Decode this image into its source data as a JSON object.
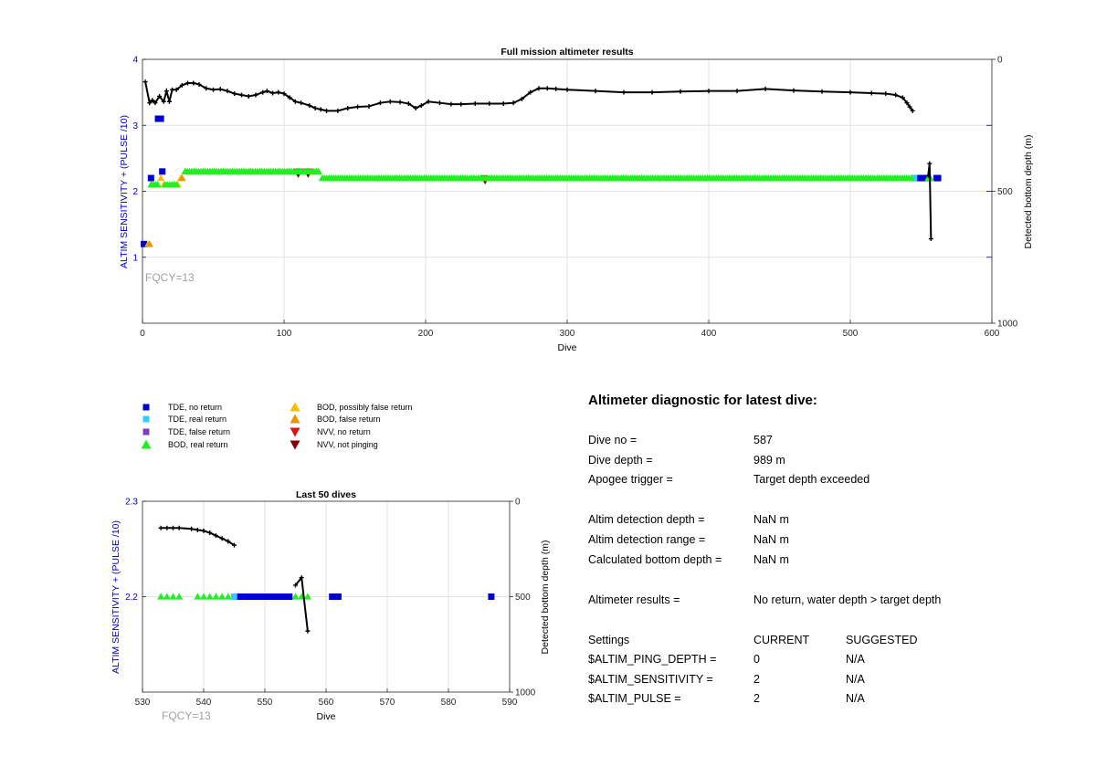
{
  "colors": {
    "tde_no_return": "#0000cc",
    "tde_real_return": "#33ccff",
    "tde_false_return": "#7d3fbf",
    "bod_real_return": "#22ee22",
    "bod_possibly_false": "#f2c000",
    "bod_false": "#e69400",
    "nvv_no_return": "#dd1111",
    "nvv_not_pinging": "#880000",
    "depth_line": "#000000",
    "left_axis": "#0000cc",
    "fqcy_text": "#a0a0a0"
  },
  "top": {
    "title": "Full mission altimeter results",
    "xlabel": "Dive",
    "ylabel_left": "ALTIM SENSITIVITY + (PULSE /10)",
    "ylabel_right": "Detected bottom depth (m)",
    "fqcy": "FQCY=13"
  },
  "bottom": {
    "title": "Last 50 dives",
    "xlabel": "Dive",
    "ylabel_left": "ALTIM SENSITIVITY + (PULSE /10)",
    "ylabel_right": "Detected bottom depth (m)",
    "fqcy": "FQCY=13"
  },
  "legend": [
    {
      "label": "TDE, no return",
      "marker": "square",
      "color_key": "tde_no_return"
    },
    {
      "label": "TDE, real return",
      "marker": "square",
      "color_key": "tde_real_return"
    },
    {
      "label": "TDE, false return",
      "marker": "square",
      "color_key": "tde_false_return"
    },
    {
      "label": "BOD, real return",
      "marker": "triangle-up",
      "color_key": "bod_real_return"
    },
    {
      "label": "BOD, possibly false return",
      "marker": "triangle-up",
      "color_key": "bod_possibly_false"
    },
    {
      "label": "BOD, false return",
      "marker": "triangle-up",
      "color_key": "bod_false"
    },
    {
      "label": "NVV, no return",
      "marker": "triangle-down",
      "color_key": "nvv_no_return"
    },
    {
      "label": "NVV, not pinging",
      "marker": "triangle-down",
      "color_key": "nvv_not_pinging"
    }
  ],
  "diagnostic": {
    "title": "Altimeter diagnostic for latest dive:",
    "dive_no_label": "Dive no =",
    "dive_no_value": "587",
    "dive_depth_label": "Dive depth =",
    "dive_depth_value": "989 m",
    "apogee_label": "Apogee trigger =",
    "apogee_value": "Target depth exceeded",
    "det_depth_label": "Altim detection depth =",
    "det_depth_value": "NaN m",
    "det_range_label": "Altim detection range =",
    "det_range_value": "NaN m",
    "calc_depth_label": "Calculated bottom depth =",
    "calc_depth_value": "NaN m",
    "results_label": "Altimeter results =",
    "results_value": "No return, water depth > target depth",
    "settings_header": "Settings",
    "current_header": "CURRENT",
    "suggested_header": "SUGGESTED",
    "settings": [
      {
        "name": "$ALTIM_PING_DEPTH =",
        "current": "0",
        "suggested": "N/A"
      },
      {
        "name": "$ALTIM_SENSITIVITY =",
        "current": "2",
        "suggested": "N/A"
      },
      {
        "name": "$ALTIM_PULSE =",
        "current": "2",
        "suggested": "N/A"
      }
    ]
  },
  "chart_data": [
    {
      "type": "scatter",
      "title": "Full mission altimeter results",
      "xlabel": "Dive",
      "ylabel_left": "ALTIM SENSITIVITY + (PULSE /10)",
      "ylabel_right": "Detected bottom depth (m)",
      "xlim": [
        0,
        600
      ],
      "ylim_left": [
        0,
        4
      ],
      "ylim_right": [
        0,
        1000
      ],
      "right_axis_reversed": true,
      "x_ticks": [
        0,
        100,
        200,
        300,
        400,
        500,
        600
      ],
      "y_left_ticks": [
        1,
        2,
        3,
        4
      ],
      "y_right_ticks": [
        0,
        500,
        1000
      ],
      "grid": true,
      "series": [
        {
          "name": "TDE, no return",
          "marker": "square",
          "color_key": "tde_no_return",
          "axis": "left",
          "x": [
            1,
            6,
            11,
            13,
            14,
            545,
            548,
            551,
            553,
            561,
            562
          ],
          "y": [
            1.2,
            2.2,
            3.1,
            3.1,
            2.3,
            2.2,
            2.2,
            2.2,
            2.2,
            2.2,
            2.2
          ]
        },
        {
          "name": "TDE, real return",
          "marker": "square",
          "color_key": "tde_real_return",
          "axis": "left",
          "x": [
            545
          ],
          "y": [
            2.2
          ]
        },
        {
          "name": "BOD, possibly false return",
          "marker": "triangle-up",
          "color_key": "bod_possibly_false",
          "axis": "left",
          "x": [
            4,
            7,
            13,
            15,
            25,
            27
          ],
          "y": [
            1.2,
            2.1,
            2.2,
            2.1,
            2.1,
            2.2
          ]
        },
        {
          "name": "BOD, false return",
          "marker": "triangle-up",
          "color_key": "bod_false",
          "axis": "left",
          "x": [
            5,
            28
          ],
          "y": [
            1.2,
            2.2
          ]
        },
        {
          "name": "NVV, no return",
          "marker": "triangle-down",
          "color_key": "nvv_no_return",
          "axis": "left",
          "x": [
            109,
            111,
            116,
            118,
            241
          ],
          "y": [
            2.3,
            2.3,
            2.3,
            2.3,
            2.2
          ]
        },
        {
          "name": "NVV, not pinging",
          "marker": "triangle-down",
          "color_key": "nvv_not_pinging",
          "axis": "left",
          "x": [
            110,
            117,
            242
          ],
          "y": [
            2.26,
            2.26,
            2.16
          ]
        },
        {
          "name": "BOD, real return",
          "marker": "triangle-up",
          "color_key": "bod_real_return",
          "axis": "left",
          "segments": [
            {
              "x_from": 6,
              "x_to": 12,
              "y": 2.1
            },
            {
              "x_from": 16,
              "x_to": 24,
              "y": 2.1
            },
            {
              "x_from": 30,
              "x_to": 125,
              "y": 2.3
            },
            {
              "x_from": 127,
              "x_to": 544,
              "y": 2.2
            },
            {
              "x_from": 555,
              "x_to": 557,
              "y": 2.2
            }
          ]
        },
        {
          "name": "Detected bottom depth",
          "marker": "plus-line",
          "color_key": "depth_line",
          "axis": "right",
          "x": [
            2,
            5,
            7,
            9,
            12,
            15,
            17,
            19,
            21,
            24,
            28,
            32,
            36,
            40,
            45,
            50,
            55,
            60,
            65,
            70,
            75,
            80,
            85,
            88,
            92,
            96,
            100,
            104,
            108,
            112,
            118,
            122,
            126,
            130,
            138,
            145,
            152,
            160,
            168,
            175,
            182,
            188,
            193,
            197,
            202,
            210,
            218,
            225,
            235,
            245,
            255,
            262,
            268,
            274,
            280,
            286,
            292,
            300,
            320,
            340,
            360,
            380,
            400,
            420,
            440,
            460,
            480,
            500,
            515,
            525,
            532,
            537,
            540,
            542,
            544
          ],
          "y": [
            85,
            165,
            155,
            165,
            140,
            160,
            120,
            160,
            115,
            115,
            98,
            90,
            90,
            95,
            110,
            115,
            113,
            120,
            130,
            135,
            140,
            135,
            125,
            120,
            128,
            125,
            130,
            145,
            160,
            165,
            175,
            185,
            190,
            195,
            195,
            185,
            180,
            178,
            165,
            160,
            162,
            168,
            185,
            175,
            160,
            165,
            170,
            170,
            168,
            168,
            168,
            165,
            150,
            125,
            110,
            110,
            112,
            115,
            120,
            125,
            125,
            122,
            120,
            120,
            112,
            118,
            122,
            125,
            128,
            130,
            135,
            145,
            165,
            180,
            195
          ]
        },
        {
          "name": "Detected bottom depth (late)",
          "marker": "plus-line",
          "color_key": "depth_line",
          "axis": "right",
          "x": [
            555,
            556,
            557
          ],
          "y": [
            440,
            395,
            680
          ]
        }
      ]
    },
    {
      "type": "scatter",
      "title": "Last 50 dives",
      "xlabel": "Dive",
      "ylabel_left": "ALTIM SENSITIVITY + (PULSE /10)",
      "ylabel_right": "Detected bottom depth (m)",
      "xlim": [
        530,
        590
      ],
      "ylim_left": [
        2.1,
        2.3
      ],
      "ylim_right": [
        0,
        1000
      ],
      "right_axis_reversed": true,
      "x_ticks": [
        530,
        540,
        550,
        560,
        570,
        580,
        590
      ],
      "y_left_ticks": [
        2.3,
        2.2
      ],
      "y_right_ticks": [
        0,
        500,
        1000
      ],
      "grid": true,
      "series": [
        {
          "name": "BOD, real return",
          "marker": "triangle-up",
          "color_key": "bod_real_return",
          "axis": "left",
          "x": [
            533,
            534,
            535,
            536,
            539,
            540,
            541,
            542,
            543,
            544,
            555,
            556,
            557
          ],
          "y": [
            2.2,
            2.2,
            2.2,
            2.2,
            2.2,
            2.2,
            2.2,
            2.2,
            2.2,
            2.2,
            2.2,
            2.2,
            2.2
          ]
        },
        {
          "name": "TDE, real return",
          "marker": "square",
          "color_key": "tde_real_return",
          "axis": "left",
          "x": [
            545
          ],
          "y": [
            2.2
          ]
        },
        {
          "name": "TDE, no return",
          "marker": "square",
          "color_key": "tde_no_return",
          "axis": "left",
          "x": [
            546,
            547,
            548,
            549,
            550,
            551,
            552,
            553,
            554,
            561,
            562,
            587
          ],
          "y": [
            2.2,
            2.2,
            2.2,
            2.2,
            2.2,
            2.2,
            2.2,
            2.2,
            2.2,
            2.2,
            2.2,
            2.2
          ]
        },
        {
          "name": "Detected bottom depth",
          "marker": "plus-line",
          "color_key": "depth_line",
          "axis": "right",
          "x": [
            533,
            534,
            535,
            536,
            538,
            539,
            540,
            541,
            542,
            543,
            544,
            545
          ],
          "y": [
            140,
            140,
            140,
            140,
            145,
            150,
            155,
            165,
            180,
            195,
            210,
            230
          ]
        },
        {
          "name": "Detected bottom depth (late)",
          "marker": "plus-line",
          "color_key": "depth_line",
          "axis": "right",
          "x": [
            555,
            556,
            557
          ],
          "y": [
            440,
            400,
            680
          ]
        }
      ]
    }
  ]
}
